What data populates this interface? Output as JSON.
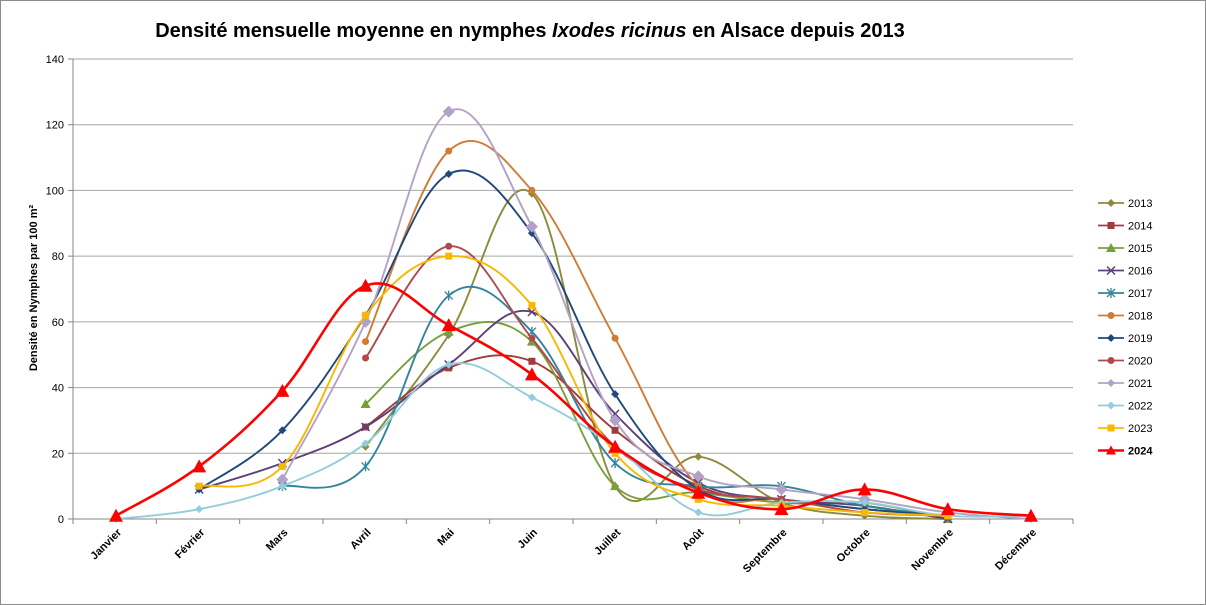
{
  "chart_data": {
    "type": "line",
    "title_parts": {
      "pre": "Densité mensuelle moyenne en nymphes ",
      "italic": "Ixodes ricinus",
      "post": " en Alsace depuis 2013"
    },
    "xlabel": "",
    "ylabel": "Densité en Nymphes par 100 m²",
    "ylim": [
      0,
      140
    ],
    "yticks": [
      "0",
      "20",
      "40",
      "60",
      "80",
      "100",
      "120",
      "140"
    ],
    "grid": true,
    "legend_position": "right",
    "categories": [
      "Janvier",
      "Février",
      "Mars",
      "Avril",
      "Mai",
      "Juin",
      "Juillet",
      "Août",
      "Septembre",
      "Octobre",
      "Novembre",
      "Décembre"
    ],
    "series": [
      {
        "name": "2013",
        "color": "#8b8b3a",
        "marker": "diamond",
        "values": [
          null,
          null,
          null,
          22,
          56,
          99,
          10,
          19,
          5,
          1,
          0,
          null
        ]
      },
      {
        "name": "2014",
        "color": "#a03c3c",
        "marker": "square",
        "values": [
          null,
          null,
          null,
          28,
          46,
          48,
          27,
          10,
          5,
          5,
          0,
          null
        ]
      },
      {
        "name": "2015",
        "color": "#77a03c",
        "marker": "triangle",
        "values": [
          null,
          null,
          null,
          35,
          57,
          54,
          10,
          8,
          5,
          5,
          0,
          null
        ]
      },
      {
        "name": "2016",
        "color": "#5d3f7a",
        "marker": "x",
        "values": [
          null,
          9,
          17,
          28,
          47,
          63,
          32,
          11,
          6,
          4,
          0,
          null
        ]
      },
      {
        "name": "2017",
        "color": "#31859c",
        "marker": "star",
        "values": [
          null,
          null,
          10,
          16,
          68,
          57,
          17,
          10,
          10,
          4,
          1,
          null
        ]
      },
      {
        "name": "2018",
        "color": "#d07c35",
        "marker": "circle",
        "values": [
          null,
          null,
          null,
          54,
          112,
          100,
          55,
          10,
          6,
          3,
          1,
          null
        ]
      },
      {
        "name": "2019",
        "color": "#1f497d",
        "marker": "diamond",
        "values": [
          null,
          9,
          27,
          62,
          105,
          87,
          38,
          9,
          6,
          3,
          1,
          null
        ]
      },
      {
        "name": "2020",
        "color": "#b04a4a",
        "marker": "circle",
        "values": [
          null,
          null,
          null,
          49,
          83,
          55,
          22,
          9,
          6,
          2,
          1,
          null
        ]
      },
      {
        "name": "2021",
        "color": "#b3a2c7",
        "marker": "diamond",
        "values": [
          null,
          null,
          12,
          60,
          124,
          89,
          30,
          13,
          9,
          6,
          2,
          0
        ]
      },
      {
        "name": "2022",
        "color": "#92cddc",
        "marker": "diamond",
        "values": [
          0,
          3,
          10,
          23,
          47,
          37,
          22,
          2,
          5,
          5,
          1,
          1
        ]
      },
      {
        "name": "2023",
        "color": "#f9b800",
        "marker": "square",
        "values": [
          null,
          10,
          16,
          62,
          80,
          65,
          20,
          6,
          4,
          2,
          1,
          null
        ]
      },
      {
        "name": "2024",
        "color": "#ff0000",
        "marker": "triangle",
        "bold": true,
        "values": [
          1,
          16,
          39,
          71,
          59,
          44,
          22,
          8,
          3,
          9,
          3,
          1
        ]
      }
    ]
  }
}
